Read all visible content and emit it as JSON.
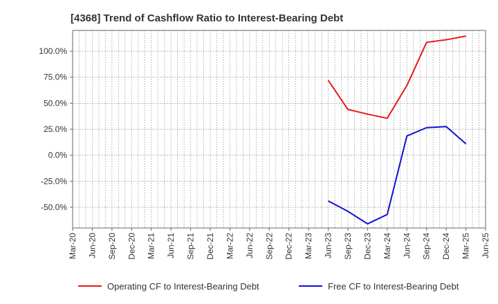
{
  "chart_data": {
    "type": "line",
    "title": "[4368]  Trend of Cashflow Ratio to Interest-Bearing Debt",
    "xlabel": "",
    "ylabel": "",
    "ylim": [
      -70,
      120
    ],
    "y_ticks": [
      -50,
      -25,
      0,
      25,
      50,
      75,
      100
    ],
    "y_tick_labels": [
      "-50.0%",
      "-25.0%",
      "0.0%",
      "25.0%",
      "50.0%",
      "75.0%",
      "100.0%"
    ],
    "x_tick_labels": [
      "Mar-20",
      "Jun-20",
      "Sep-20",
      "Dec-20",
      "Mar-21",
      "Jun-21",
      "Sep-21",
      "Dec-21",
      "Mar-22",
      "Jun-22",
      "Sep-22",
      "Dec-22",
      "Mar-23",
      "Jun-23",
      "Sep-23",
      "Dec-23",
      "Mar-24",
      "Jun-24",
      "Sep-24",
      "Dec-24",
      "Mar-25",
      "Jun-25"
    ],
    "grid": true,
    "legend_position": "bottom",
    "series": [
      {
        "name": "Operating CF to Interest-Bearing Debt",
        "color": "#e31a1c",
        "x": [
          "Jun-23",
          "Sep-23",
          "Dec-23",
          "Mar-24",
          "Jun-24",
          "Sep-24",
          "Dec-24",
          "Mar-25"
        ],
        "values": [
          72,
          44,
          39.5,
          35.5,
          67,
          108.5,
          111,
          114.5
        ]
      },
      {
        "name": "Free CF to Interest-Bearing Debt",
        "color": "#1010d0",
        "x": [
          "Jun-23",
          "Sep-23",
          "Dec-23",
          "Mar-24",
          "Jun-24",
          "Sep-24",
          "Dec-24",
          "Mar-25"
        ],
        "values": [
          -44,
          -54,
          -66,
          -57,
          18.5,
          26.5,
          27.5,
          11
        ]
      }
    ]
  }
}
